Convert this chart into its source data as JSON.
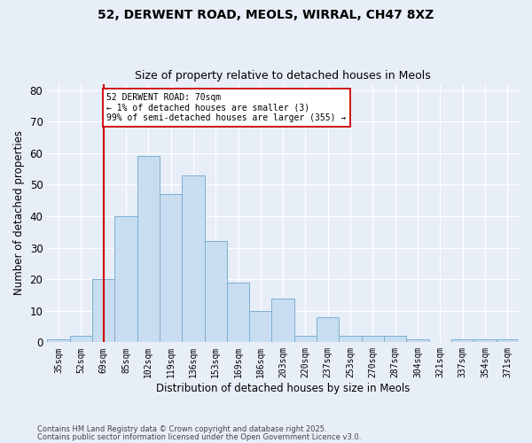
{
  "title1": "52, DERWENT ROAD, MEOLS, WIRRAL, CH47 8XZ",
  "title2": "Size of property relative to detached houses in Meols",
  "xlabel": "Distribution of detached houses by size in Meols",
  "ylabel": "Number of detached properties",
  "categories": [
    "35sqm",
    "52sqm",
    "69sqm",
    "85sqm",
    "102sqm",
    "119sqm",
    "136sqm",
    "153sqm",
    "169sqm",
    "186sqm",
    "203sqm",
    "220sqm",
    "237sqm",
    "253sqm",
    "270sqm",
    "287sqm",
    "304sqm",
    "321sqm",
    "337sqm",
    "354sqm",
    "371sqm"
  ],
  "values": [
    1,
    2,
    20,
    40,
    59,
    47,
    53,
    32,
    19,
    10,
    14,
    2,
    8,
    2,
    2,
    2,
    1,
    0,
    1,
    1,
    1
  ],
  "bar_color": "#c9ddf0",
  "bar_edge_color": "#7aafd4",
  "highlight_bar_index": 2,
  "highlight_line_color": "#cc0000",
  "annotation_text": "52 DERWENT ROAD: 70sqm\n← 1% of detached houses are smaller (3)\n99% of semi-detached houses are larger (355) →",
  "annotation_box_color": "#ffffff",
  "annotation_box_edge": "#cc0000",
  "ylim": [
    0,
    82
  ],
  "yticks": [
    0,
    10,
    20,
    30,
    40,
    50,
    60,
    70,
    80
  ],
  "footer1": "Contains HM Land Registry data © Crown copyright and database right 2025.",
  "footer2": "Contains public sector information licensed under the Open Government Licence v3.0.",
  "bg_color": "#e8eef8",
  "plot_bg_color": "#e8eef8",
  "grid_color": "#ffffff"
}
